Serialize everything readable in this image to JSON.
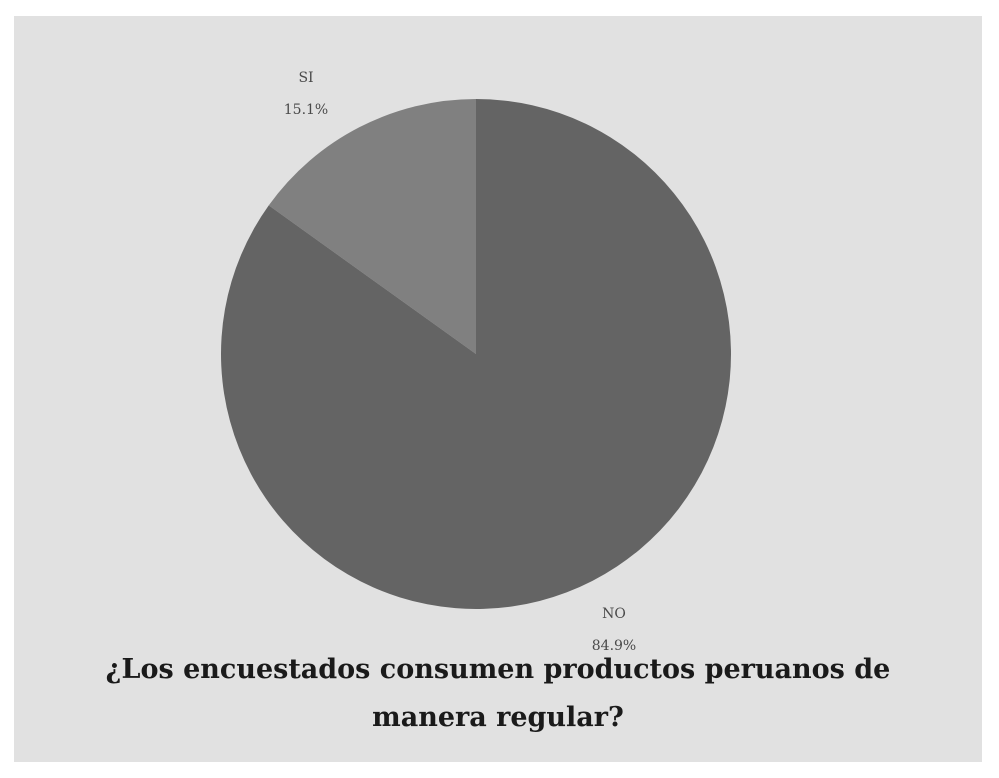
{
  "chart_data": {
    "type": "pie",
    "title_line1": "¿Los encuestados consumen productos peruanos de",
    "title_line2": "manera regular?",
    "slices": [
      {
        "name": "SI",
        "value": 15.1,
        "label": "15.1%",
        "color": "#808080"
      },
      {
        "name": "NO",
        "value": 84.9,
        "label": "84.9%",
        "color": "#646464"
      }
    ],
    "start_angle_deg": 0,
    "direction": "counterclockwise",
    "background_color": "#e1e1e1"
  }
}
